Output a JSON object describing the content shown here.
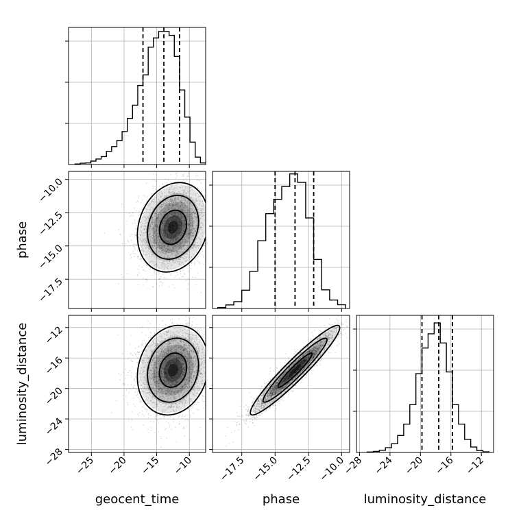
{
  "chart_data": {
    "type": "corner",
    "parameters": [
      "geocent_time",
      "phase",
      "luminosity_distance"
    ],
    "axis_labels": {
      "geocent_time": "geocent_time",
      "phase": "phase",
      "luminosity_distance": "luminosity_distance"
    },
    "ranges": {
      "geocent_time": [
        -28.5,
        -7.5
      ],
      "phase": [
        -19.7,
        -9.4
      ],
      "luminosity_distance": [
        -28.4,
        -10.4
      ]
    },
    "ticks": {
      "geocent_time": [
        {
          "value": -25,
          "label": "−25"
        },
        {
          "value": -20,
          "label": "−20"
        },
        {
          "value": -15,
          "label": "−15"
        },
        {
          "value": -10,
          "label": "−10"
        }
      ],
      "phase": [
        {
          "value": -17.5,
          "label": "−17.5"
        },
        {
          "value": -15.0,
          "label": "−15.0"
        },
        {
          "value": -12.5,
          "label": "−12.5"
        },
        {
          "value": -10.0,
          "label": "−10.0"
        }
      ],
      "luminosity_distance": [
        {
          "value": -28,
          "label": "−28"
        },
        {
          "value": -24,
          "label": "−24"
        },
        {
          "value": -20,
          "label": "−20"
        },
        {
          "value": -16,
          "label": "−16"
        },
        {
          "value": -12,
          "label": "−12"
        }
      ]
    },
    "histograms": {
      "geocent_time": {
        "bin_edges": [
          -27.5,
          -26.7,
          -25.9,
          -25.1,
          -24.3,
          -23.5,
          -22.7,
          -21.9,
          -21.1,
          -20.3,
          -19.5,
          -18.7,
          -17.9,
          -17.1,
          -16.3,
          -15.5,
          -14.7,
          -13.9,
          -13.1,
          -12.3,
          -11.5,
          -10.7,
          -9.9,
          -9.1,
          -8.3,
          -7.5
        ],
        "counts": [
          0.2,
          0.5,
          0.6,
          1.3,
          2.1,
          3,
          5,
          6.8,
          9.1,
          12.5,
          17.5,
          22.5,
          30,
          34,
          44.5,
          48,
          50.5,
          50.5,
          49,
          41,
          28.3,
          18,
          8.5,
          2.8,
          0.6
        ],
        "quantiles": [
          -17.1,
          -13.9,
          -11.5
        ],
        "ylim": [
          0,
          52
        ]
      },
      "phase": {
        "bin_edges": [
          -19.3,
          -18.7,
          -18.1,
          -17.5,
          -16.9,
          -16.3,
          -15.7,
          -15.1,
          -14.5,
          -13.9,
          -13.3,
          -12.7,
          -12.1,
          -11.5,
          -10.9,
          -10.3,
          -9.7
        ],
        "counts": [
          0.6,
          2.1,
          4,
          10.8,
          22,
          40,
          56,
          64.5,
          72,
          79.5,
          74.5,
          53.5,
          29,
          11,
          5,
          2.2
        ],
        "quantiles": [
          -15.0,
          -13.5,
          -12.1
        ],
        "ylim": [
          0,
          81
        ]
      },
      "luminosity_distance": {
        "bin_edges": [
          -27.0,
          -26.2,
          -25.4,
          -24.6,
          -23.8,
          -23.0,
          -22.2,
          -21.4,
          -20.6,
          -19.8,
          -19.0,
          -18.2,
          -17.4,
          -16.6,
          -15.8,
          -15.0,
          -14.2,
          -13.4,
          -12.6,
          -11.8,
          -11.0
        ],
        "counts": [
          0.2,
          0.5,
          1,
          2.2,
          4,
          7.8,
          13,
          22,
          36.2,
          48,
          54.5,
          59.5,
          50.3,
          37,
          22,
          13,
          6,
          2.5,
          0.9,
          0.3
        ],
        "quantiles": [
          -19.8,
          -17.6,
          -15.8
        ],
        "ylim": [
          0,
          63
        ]
      }
    },
    "pairs": [
      {
        "x": "geocent_time",
        "y": "phase",
        "center": [
          -12.5,
          -13.6
        ],
        "sigma": [
          2.6,
          1.6
        ],
        "correlation": 0.18,
        "contour_levels_sigma": [
          0.8,
          1.5,
          2.1
        ],
        "n_points": 3000
      },
      {
        "x": "geocent_time",
        "y": "luminosity_distance",
        "center": [
          -12.5,
          -17.6
        ],
        "sigma": [
          2.6,
          2.8
        ],
        "correlation": 0.15,
        "contour_levels_sigma": [
          0.8,
          1.5,
          2.1
        ],
        "n_points": 3000
      },
      {
        "x": "phase",
        "y": "luminosity_distance",
        "center": [
          -13.5,
          -17.6
        ],
        "sigma": [
          1.6,
          2.8
        ],
        "correlation": 0.95,
        "contour_levels_sigma": [
          0.8,
          1.5,
          2.1
        ],
        "n_points": 3000
      }
    ],
    "grid": true,
    "legend": "none"
  }
}
